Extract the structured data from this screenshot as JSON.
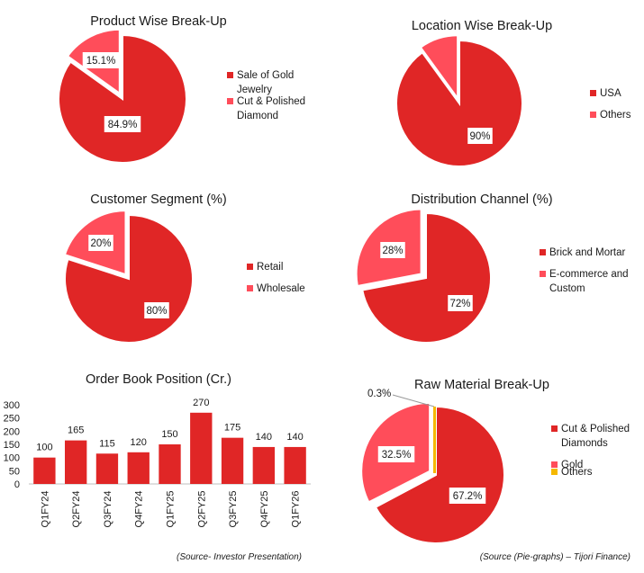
{
  "colors": {
    "primary": "#e02626",
    "secondary": "#ff4d5a",
    "tertiary": "#f5b800"
  },
  "chart_data": [
    {
      "id": "product",
      "type": "pie",
      "title": "Product Wise Break-Up",
      "slices": [
        {
          "label_lines": [
            "Sale of Gold",
            "Jewelry"
          ],
          "value": 84.9,
          "display": "84.9%"
        },
        {
          "label_lines": [
            "Cut & Polished",
            "Diamond"
          ],
          "value": 15.1,
          "display": "15.1%"
        }
      ]
    },
    {
      "id": "location",
      "type": "pie",
      "title": "Location Wise Break-Up",
      "slices": [
        {
          "label_lines": [
            "USA"
          ],
          "value": 90,
          "display": "90%"
        },
        {
          "label_lines": [
            "Others"
          ],
          "value": 10,
          "display": ""
        }
      ]
    },
    {
      "id": "customer",
      "type": "pie",
      "title": "Customer Segment (%)",
      "slices": [
        {
          "label_lines": [
            "Retail"
          ],
          "value": 80,
          "display": "80%"
        },
        {
          "label_lines": [
            "Wholesale"
          ],
          "value": 20,
          "display": "20%"
        }
      ]
    },
    {
      "id": "distribution",
      "type": "pie",
      "title": "Distribution Channel (%)",
      "slices": [
        {
          "label_lines": [
            "Brick and Mortar"
          ],
          "value": 72,
          "display": "72%"
        },
        {
          "label_lines": [
            "E-commerce and",
            "Custom"
          ],
          "value": 28,
          "display": "28%"
        }
      ]
    },
    {
      "id": "orderbook",
      "type": "bar",
      "title": "Order Book Position (Cr.)",
      "categories": [
        "Q1FY24",
        "Q2FY24",
        "Q3FY24",
        "Q4FY24",
        "Q1FY25",
        "Q2FY25",
        "Q3FY25",
        "Q4FY25",
        "Q1FY26"
      ],
      "values": [
        100,
        165,
        115,
        120,
        150,
        270,
        175,
        140,
        140
      ],
      "yticks": [
        0,
        50,
        100,
        150,
        200,
        250,
        300
      ],
      "ylim": [
        0,
        300
      ]
    },
    {
      "id": "rawmaterial",
      "type": "pie",
      "title": "Raw Material Break-Up",
      "slices": [
        {
          "label_lines": [
            "Cut & Polished",
            "Diamonds"
          ],
          "value": 67.2,
          "display": "67.2%"
        },
        {
          "label_lines": [
            "Gold"
          ],
          "value": 32.5,
          "display": "32.5%"
        },
        {
          "label_lines": [
            "Others"
          ],
          "value": 0.3,
          "display": "0.3%"
        }
      ]
    }
  ],
  "sources": {
    "left": "(Source- Investor Presentation)",
    "right": "(Source (Pie-graphs) – Tijori Finance)"
  }
}
